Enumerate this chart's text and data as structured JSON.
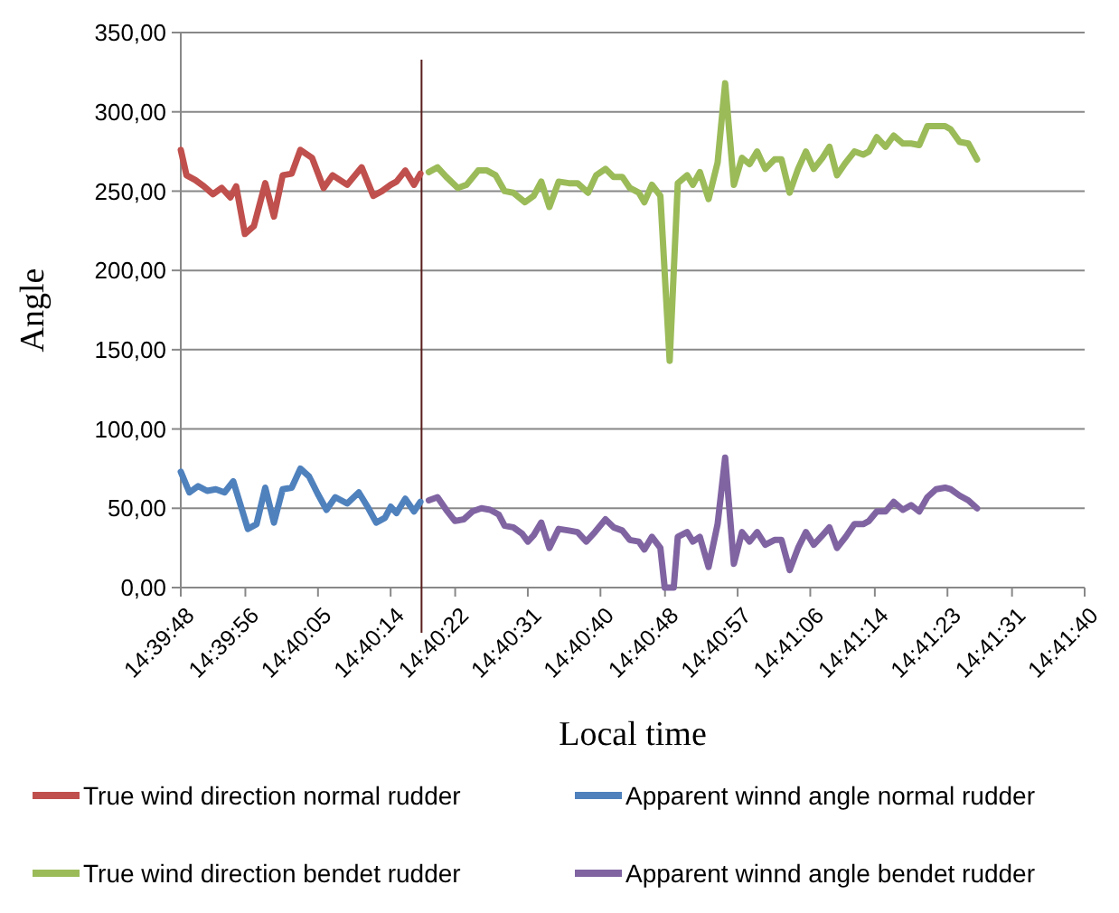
{
  "chart_data": {
    "type": "line",
    "xlabel": "Local time",
    "ylabel": "Angle",
    "grid": "y",
    "legend": "bottom",
    "marker": "none",
    "line_style": "solid",
    "xlim": [
      14.663333,
      14.694444
    ],
    "xticks": [
      {
        "value": 14.663333,
        "label": "14:39:48"
      },
      {
        "value": 14.665556,
        "label": "14:39:56"
      },
      {
        "value": 14.668056,
        "label": "14:40:05"
      },
      {
        "value": 14.670556,
        "label": "14:40:14"
      },
      {
        "value": 14.672778,
        "label": "14:40:22"
      },
      {
        "value": 14.675278,
        "label": "14:40:31"
      },
      {
        "value": 14.677778,
        "label": "14:40:40"
      },
      {
        "value": 14.68,
        "label": "14:40:48"
      },
      {
        "value": 14.6825,
        "label": "14:40:57"
      },
      {
        "value": 14.685,
        "label": "14:41:06"
      },
      {
        "value": 14.687222,
        "label": "14:41:14"
      },
      {
        "value": 14.689722,
        "label": "14:41:23"
      },
      {
        "value": 14.691944,
        "label": "14:41:31"
      },
      {
        "value": 14.694444,
        "label": "14:41:40"
      }
    ],
    "ylim": [
      0,
      350
    ],
    "yticks": [
      {
        "value": 0,
        "label": "0,00"
      },
      {
        "value": 50,
        "label": "50,00"
      },
      {
        "value": 100,
        "label": "100,00"
      },
      {
        "value": 150,
        "label": "150,00"
      },
      {
        "value": 200,
        "label": "200,00"
      },
      {
        "value": 250,
        "label": "250,00"
      },
      {
        "value": 300,
        "label": "300,00"
      },
      {
        "value": 350,
        "label": "350,00"
      }
    ],
    "ref_lines": [
      {
        "axis": "x",
        "value": 14.67162,
        "color": "#5a1e1e"
      }
    ],
    "series": [
      {
        "name": "True wind direction normal rudder",
        "color": "#c0504d",
        "x": [
          14.663333,
          14.66353,
          14.66383,
          14.66413,
          14.66444,
          14.66474,
          14.66504,
          14.66524,
          14.66554,
          14.66585,
          14.66624,
          14.66654,
          14.66684,
          14.66715,
          14.66745,
          14.66785,
          14.66825,
          14.66856,
          14.66906,
          14.66956,
          14.66996,
          14.67026,
          14.67056,
          14.67076,
          14.67106,
          14.67136,
          14.67158
        ],
        "values": [
          276,
          260,
          257,
          253,
          248,
          252,
          246,
          253,
          223,
          228,
          255,
          234,
          260,
          261,
          276,
          271,
          252,
          260,
          254,
          265,
          247,
          250,
          254,
          256,
          263,
          254,
          261
        ]
      },
      {
        "name": "Apparent winnd angle normal rudder",
        "color": "#4f81bd",
        "x": [
          14.663333,
          14.66363,
          14.66393,
          14.66424,
          14.66454,
          14.66484,
          14.66514,
          14.66534,
          14.66564,
          14.66594,
          14.66624,
          14.66654,
          14.66684,
          14.66715,
          14.66745,
          14.66775,
          14.66805,
          14.66835,
          14.66865,
          14.66906,
          14.66946,
          14.66976,
          14.67006,
          14.67036,
          14.67056,
          14.67076,
          14.67106,
          14.67136,
          14.67158
        ],
        "values": [
          73,
          60,
          64,
          61,
          62,
          60,
          67,
          55,
          37,
          40,
          63,
          41,
          62,
          63,
          75,
          70,
          59,
          49,
          57,
          53,
          60,
          51,
          41,
          44,
          51,
          47,
          56,
          48,
          54
        ]
      },
      {
        "name": "True wind direction bendet rudder",
        "color": "#9bbb59",
        "x": [
          14.67187,
          14.67217,
          14.67247,
          14.67287,
          14.67317,
          14.67357,
          14.67387,
          14.67417,
          14.67448,
          14.67478,
          14.67518,
          14.67548,
          14.67574,
          14.67602,
          14.67634,
          14.67669,
          14.67699,
          14.67735,
          14.67763,
          14.67795,
          14.67823,
          14.67853,
          14.67879,
          14.6791,
          14.67929,
          14.67955,
          14.67984,
          14.68016,
          14.68044,
          14.68076,
          14.68096,
          14.6812,
          14.6815,
          14.68181,
          14.68207,
          14.68237,
          14.68265,
          14.68291,
          14.68317,
          14.68345,
          14.68377,
          14.68401,
          14.68429,
          14.68458,
          14.68485,
          14.68512,
          14.68542,
          14.68566,
          14.68592,
          14.68622,
          14.68652,
          14.68682,
          14.68702,
          14.68729,
          14.68759,
          14.68787,
          14.68819,
          14.68847,
          14.68875,
          14.68903,
          14.68933,
          14.68964,
          14.68983,
          14.69014,
          14.69044,
          14.69074
        ],
        "values": [
          262,
          265,
          259,
          252,
          254,
          263,
          263,
          260,
          250,
          249,
          243,
          247,
          256,
          240,
          256,
          255,
          255,
          249,
          260,
          264,
          259,
          259,
          252,
          249,
          243,
          254,
          247,
          143,
          255,
          260,
          254,
          262,
          245,
          268,
          318,
          254,
          271,
          267,
          275,
          264,
          270,
          270,
          249,
          264,
          275,
          264,
          271,
          278,
          260,
          268,
          275,
          273,
          275,
          284,
          278,
          285,
          280,
          280,
          279,
          291,
          291,
          291,
          289,
          281,
          280,
          270
        ]
      },
      {
        "name": "Apparent winnd angle bendet rudder",
        "color": "#8064a2",
        "x": [
          14.67187,
          14.67217,
          14.67247,
          14.67277,
          14.67307,
          14.67337,
          14.67368,
          14.67398,
          14.67428,
          14.67448,
          14.67478,
          14.67508,
          14.67528,
          14.67548,
          14.67574,
          14.67602,
          14.67634,
          14.67669,
          14.67699,
          14.67729,
          14.67759,
          14.67795,
          14.67823,
          14.67853,
          14.67879,
          14.6791,
          14.67929,
          14.67955,
          14.67984,
          14.67999,
          14.6803,
          14.68044,
          14.68076,
          14.68096,
          14.6812,
          14.6815,
          14.68181,
          14.68207,
          14.68237,
          14.68265,
          14.68291,
          14.68317,
          14.68345,
          14.68377,
          14.68401,
          14.68429,
          14.68458,
          14.68485,
          14.68512,
          14.68542,
          14.68566,
          14.68592,
          14.68622,
          14.68652,
          14.68682,
          14.68702,
          14.68729,
          14.68759,
          14.68787,
          14.68819,
          14.68847,
          14.68875,
          14.68903,
          14.68933,
          14.68964,
          14.68983,
          14.69014,
          14.69044,
          14.69074
        ],
        "values": [
          55,
          57,
          49,
          42,
          43,
          48,
          50,
          49,
          46,
          39,
          38,
          34,
          29,
          33,
          41,
          25,
          37,
          36,
          35,
          29,
          35,
          43,
          38,
          36,
          30,
          29,
          24,
          32,
          25,
          0,
          0,
          32,
          35,
          29,
          32,
          13,
          40,
          82,
          15,
          35,
          29,
          35,
          27,
          30,
          30,
          11,
          25,
          35,
          27,
          33,
          38,
          25,
          32,
          40,
          40,
          42,
          48,
          48,
          54,
          49,
          52,
          48,
          57,
          62,
          63,
          62,
          58,
          55,
          50
        ]
      }
    ]
  }
}
